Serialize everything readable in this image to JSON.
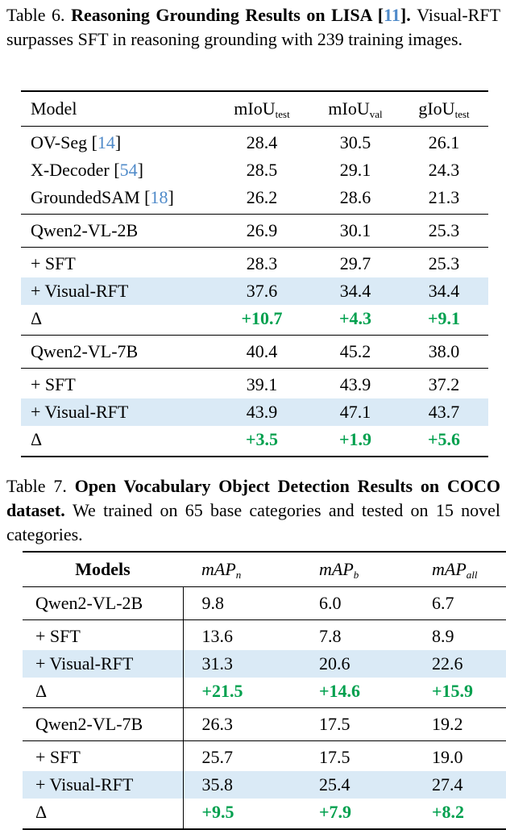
{
  "colors": {
    "highlight_row": "#daeaf6",
    "delta_green": "#00a04e",
    "citation_blue": "#4f8ac9",
    "rule_black": "#000000",
    "background": "#ffffff"
  },
  "caption6": {
    "lead": "Table 6. ",
    "title": "Reasoning Grounding Results on LISA ",
    "cite_open": "[",
    "cite": "11",
    "cite_close": "]. ",
    "tail": "Visual-RFT surpasses SFT in reasoning grounding with 239 training images."
  },
  "caption7": {
    "lead": "Table 7. ",
    "title": "Open Vocabulary Object Detection Results on COCO dataset. ",
    "tail": "We trained on 65 base categories and tested on 15 novel categories."
  },
  "t6": {
    "headers": {
      "col1": "Model",
      "col2base": "mIoU",
      "col2sub": "test",
      "col3base": "mIoU",
      "col3sub": "val",
      "col4base": "gIoU",
      "col4sub": "test"
    },
    "rows": [
      {
        "model": "OV-Seg",
        "b1": " [",
        "cite": "14",
        "b2": "]",
        "v1": "28.4",
        "v2": "30.5",
        "v3": "26.1"
      },
      {
        "model": "X-Decoder",
        "b1": " [",
        "cite": "54",
        "b2": "]",
        "v1": "28.5",
        "v2": "29.1",
        "v3": "24.3"
      },
      {
        "model": "GroundedSAM",
        "b1": " [",
        "cite": "18",
        "b2": "]",
        "v1": "26.2",
        "v2": "28.6",
        "v3": "21.3"
      },
      {
        "model": "Qwen2-VL-2B",
        "v1": "26.9",
        "v2": "30.1",
        "v3": "25.3"
      },
      {
        "model": "+ SFT",
        "v1": "28.3",
        "v2": "29.7",
        "v3": "25.3"
      },
      {
        "model": "+ Visual-RFT",
        "v1": "37.6",
        "v2": "34.4",
        "v3": "34.4"
      },
      {
        "model": "Δ",
        "v1": "+10.7",
        "v2": "+4.3",
        "v3": "+9.1"
      },
      {
        "model": "Qwen2-VL-7B",
        "v1": "40.4",
        "v2": "45.2",
        "v3": "38.0"
      },
      {
        "model": "+ SFT",
        "v1": "39.1",
        "v2": "43.9",
        "v3": "37.2"
      },
      {
        "model": "+ Visual-RFT",
        "v1": "43.9",
        "v2": "47.1",
        "v3": "43.7"
      },
      {
        "model": "Δ",
        "v1": "+3.5",
        "v2": "+1.9",
        "v3": "+5.6"
      }
    ]
  },
  "t7": {
    "headers": {
      "col1": "Models",
      "col2base": "mAP",
      "col2sub": "n",
      "col3base": "mAP",
      "col3sub": "b",
      "col4base": "mAP",
      "col4sub": "all"
    },
    "rows": [
      {
        "model": "Qwen2-VL-2B",
        "v1": "9.8",
        "v2": "6.0",
        "v3": "6.7"
      },
      {
        "model": "+ SFT",
        "v1": "13.6",
        "v2": "7.8",
        "v3": "8.9"
      },
      {
        "model": "+ Visual-RFT",
        "v1": "31.3",
        "v2": "20.6",
        "v3": "22.6"
      },
      {
        "model": "Δ",
        "v1": "+21.5",
        "v2": "+14.6",
        "v3": "+15.9"
      },
      {
        "model": "Qwen2-VL-7B",
        "v1": "26.3",
        "v2": "17.5",
        "v3": "19.2"
      },
      {
        "model": "+ SFT",
        "v1": "25.7",
        "v2": "17.5",
        "v3": "19.0"
      },
      {
        "model": "+ Visual-RFT",
        "v1": "35.8",
        "v2": "25.4",
        "v3": "27.4"
      },
      {
        "model": "Δ",
        "v1": "+9.5",
        "v2": "+7.9",
        "v3": "+8.2"
      }
    ]
  }
}
